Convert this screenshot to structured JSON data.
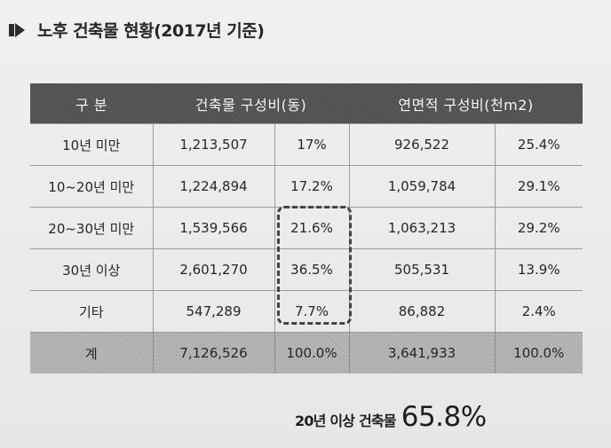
{
  "title": "노후 건축물 현황(2017년 기준)",
  "table": {
    "headers": [
      "구 분",
      "건축물 구성비(동)",
      "연면적 구성비(천m2)"
    ],
    "rows": [
      [
        "10년 미만",
        "1,213,507",
        "17%",
        "926,522",
        "25.4%"
      ],
      [
        "10~20년 미만",
        "1,224,894",
        "17.2%",
        "1,059,784",
        "29.1%"
      ],
      [
        "20~30년 미만",
        "1,539,566",
        "21.6%",
        "1,063,213",
        "29.2%"
      ],
      [
        "30년 이상",
        "2,601,270",
        "36.5%",
        "505,531",
        "13.9%"
      ],
      [
        "기타",
        "547,289",
        "7.7%",
        "86,882",
        "2.4%"
      ]
    ],
    "total": [
      "계",
      "7,126,526",
      "100.0%",
      "3,641,933",
      "100.0%"
    ]
  },
  "summary": {
    "label": "20년 이상 건축물",
    "value": "65.8%"
  }
}
